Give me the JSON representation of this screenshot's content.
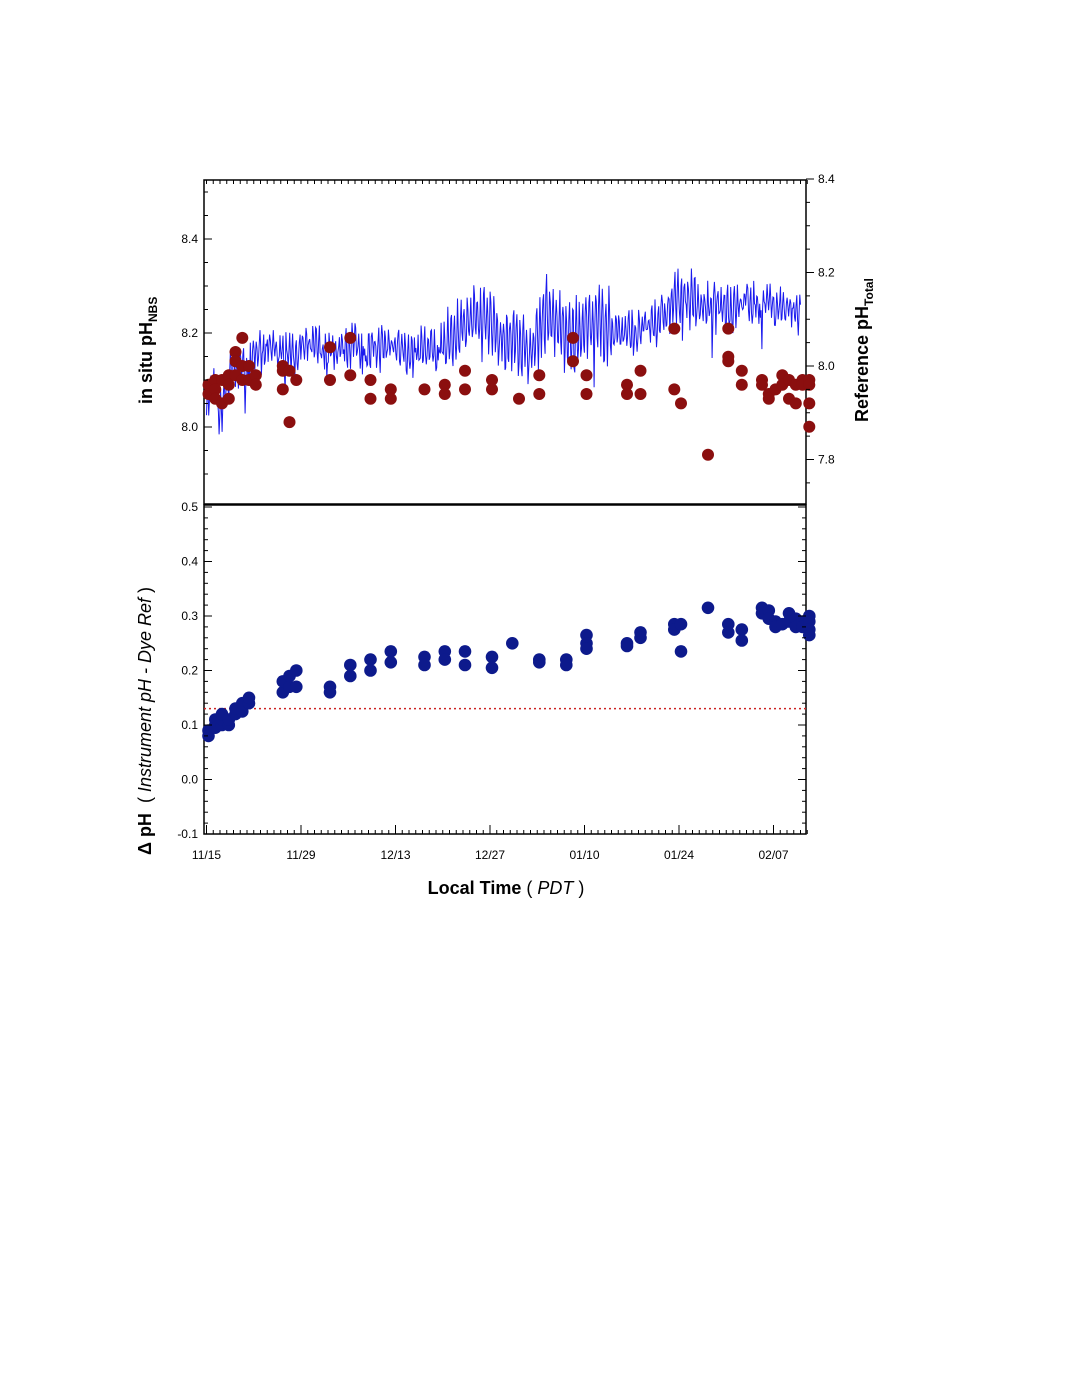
{
  "chart_data": [
    {
      "type": "line",
      "panel": "top",
      "x_ticks": [
        "11/15",
        "11/29",
        "12/13",
        "12/27",
        "01/10",
        "01/24",
        "02/07"
      ],
      "x_range": [
        "2011-11-15",
        "2012-02-12"
      ],
      "ylabel_left": {
        "main": "in situ pH",
        "sub": "NBS"
      },
      "ylabel_right": {
        "main": "Reference pH",
        "sub": "Total"
      },
      "ylim_left": [
        7.85,
        8.55
      ],
      "ylim_right": [
        7.7,
        8.4
      ],
      "yticks_left": [
        "8.0",
        "8.2",
        "8.4"
      ],
      "yticks_right": [
        "7.8",
        "8.0",
        "8.2",
        "8.4"
      ],
      "grid": false,
      "series": [
        {
          "kind": "line",
          "axis": "left",
          "color": "#1a1aee",
          "anchor_points": [
            [
              "11/15",
              8.05
            ],
            [
              "11/16",
              8.08
            ],
            [
              "11/17",
              8.02
            ],
            [
              "11/18",
              8.09
            ],
            [
              "11/19",
              8.12
            ],
            [
              "11/20",
              8.13
            ],
            [
              "11/21",
              8.12
            ],
            [
              "11/22",
              8.17
            ],
            [
              "11/23",
              8.15
            ],
            [
              "11/24",
              8.16
            ],
            [
              "11/25",
              8.17
            ],
            [
              "11/26",
              8.15
            ],
            [
              "11/27",
              8.16
            ],
            [
              "11/28",
              8.15
            ],
            [
              "11/29",
              8.17
            ],
            [
              "12/01",
              8.17
            ],
            [
              "12/03",
              8.16
            ],
            [
              "12/05",
              8.17
            ],
            [
              "12/07",
              8.18
            ],
            [
              "12/09",
              8.16
            ],
            [
              "12/11",
              8.17
            ],
            [
              "12/13",
              8.18
            ],
            [
              "12/15",
              8.15
            ],
            [
              "12/17",
              8.17
            ],
            [
              "12/19",
              8.16
            ],
            [
              "12/21",
              8.18
            ],
            [
              "12/23",
              8.22
            ],
            [
              "12/25",
              8.23
            ],
            [
              "12/27",
              8.23
            ],
            [
              "12/29",
              8.18
            ],
            [
              "12/31",
              8.19
            ],
            [
              "01/02",
              8.15
            ],
            [
              "01/04",
              8.24
            ],
            [
              "01/06",
              8.22
            ],
            [
              "01/08",
              8.18
            ],
            [
              "01/10",
              8.22
            ],
            [
              "01/12",
              8.22
            ],
            [
              "01/14",
              8.21
            ],
            [
              "01/16",
              8.2
            ],
            [
              "01/18",
              8.2
            ],
            [
              "01/20",
              8.22
            ],
            [
              "01/22",
              8.24
            ],
            [
              "01/24",
              8.28
            ],
            [
              "01/26",
              8.27
            ],
            [
              "01/28",
              8.25
            ],
            [
              "01/30",
              8.26
            ],
            [
              "02/01",
              8.25
            ],
            [
              "02/03",
              8.27
            ],
            [
              "02/05",
              8.26
            ],
            [
              "02/07",
              8.26
            ],
            [
              "02/09",
              8.25
            ],
            [
              "02/11",
              8.24
            ]
          ]
        },
        {
          "kind": "scatter",
          "axis": "right",
          "color": "#8b0f0f",
          "points": [
            [
              "11/15",
              7.96
            ],
            [
              "11/15",
              7.94
            ],
            [
              "11/16",
              7.97
            ],
            [
              "11/16",
              7.95
            ],
            [
              "11/16",
              7.93
            ],
            [
              "11/17",
              7.97
            ],
            [
              "11/17",
              7.92
            ],
            [
              "11/18",
              7.98
            ],
            [
              "11/18",
              7.96
            ],
            [
              "11/18",
              7.93
            ],
            [
              "11/19",
              8.03
            ],
            [
              "11/19",
              8.01
            ],
            [
              "11/19",
              7.98
            ],
            [
              "11/20",
              8.06
            ],
            [
              "11/20",
              8.0
            ],
            [
              "11/20",
              7.97
            ],
            [
              "11/21",
              8.0
            ],
            [
              "11/21",
              7.97
            ],
            [
              "11/22",
              7.98
            ],
            [
              "11/22",
              7.96
            ],
            [
              "11/26",
              8.0
            ],
            [
              "11/26",
              7.99
            ],
            [
              "11/26",
              7.95
            ],
            [
              "11/27",
              7.99
            ],
            [
              "11/27",
              7.88
            ],
            [
              "11/28",
              7.97
            ],
            [
              "12/03",
              8.04
            ],
            [
              "12/03",
              7.97
            ],
            [
              "12/06",
              8.06
            ],
            [
              "12/06",
              7.98
            ],
            [
              "12/09",
              7.97
            ],
            [
              "12/09",
              7.93
            ],
            [
              "12/12",
              7.95
            ],
            [
              "12/12",
              7.93
            ],
            [
              "12/17",
              7.95
            ],
            [
              "12/20",
              7.96
            ],
            [
              "12/20",
              7.94
            ],
            [
              "12/23",
              7.99
            ],
            [
              "12/23",
              7.95
            ],
            [
              "12/27",
              7.97
            ],
            [
              "12/27",
              7.95
            ],
            [
              "12/31",
              7.93
            ],
            [
              "01/03",
              7.98
            ],
            [
              "01/03",
              7.94
            ],
            [
              "01/08",
              8.06
            ],
            [
              "01/08",
              8.01
            ],
            [
              "01/10",
              7.98
            ],
            [
              "01/10",
              7.94
            ],
            [
              "01/16",
              7.96
            ],
            [
              "01/16",
              7.94
            ],
            [
              "01/18",
              7.99
            ],
            [
              "01/18",
              7.94
            ],
            [
              "01/23",
              7.95
            ],
            [
              "01/23",
              8.08
            ],
            [
              "01/24",
              7.92
            ],
            [
              "01/28",
              7.81
            ],
            [
              "01/31",
              8.08
            ],
            [
              "01/31",
              8.02
            ],
            [
              "01/31",
              8.01
            ],
            [
              "02/02",
              7.99
            ],
            [
              "02/02",
              7.96
            ],
            [
              "02/05",
              7.97
            ],
            [
              "02/05",
              7.96
            ],
            [
              "02/06",
              7.94
            ],
            [
              "02/06",
              7.93
            ],
            [
              "02/07",
              7.95
            ],
            [
              "02/08",
              7.98
            ],
            [
              "02/08",
              7.96
            ],
            [
              "02/09",
              7.97
            ],
            [
              "02/09",
              7.93
            ],
            [
              "02/10",
              7.96
            ],
            [
              "02/10",
              7.92
            ],
            [
              "02/11",
              7.97
            ],
            [
              "02/11",
              7.96
            ],
            [
              "02/12",
              7.97
            ],
            [
              "02/12",
              7.96
            ],
            [
              "02/12",
              7.92
            ],
            [
              "02/12",
              7.87
            ]
          ]
        }
      ]
    },
    {
      "type": "scatter",
      "panel": "bottom",
      "xlabel": {
        "main": "Local Time",
        "paren_open": " ( ",
        "italic": "PDT",
        "paren_close": " )"
      },
      "ylabel": {
        "main": "Δ pH",
        "paren_open": "  ( ",
        "italic": "Instrument pH - Dye Ref",
        "paren_close": " )"
      },
      "x_ticks": [
        "11/15",
        "11/29",
        "12/13",
        "12/27",
        "01/10",
        "01/24",
        "02/07"
      ],
      "ylim": [
        -0.1,
        0.5
      ],
      "yticks": [
        "-0.1",
        "0.0",
        "0.1",
        "0.2",
        "0.3",
        "0.4",
        "0.5"
      ],
      "reference_line": {
        "y": 0.13,
        "style": "dotted",
        "color": "#cc2222"
      },
      "grid": false,
      "series": [
        {
          "kind": "scatter",
          "color": "#0d1a8c",
          "points": [
            [
              "11/15",
              0.09
            ],
            [
              "11/15",
              0.08
            ],
            [
              "11/16",
              0.1
            ],
            [
              "11/16",
              0.11
            ],
            [
              "11/16",
              0.095
            ],
            [
              "11/17",
              0.1
            ],
            [
              "11/17",
              0.11
            ],
            [
              "11/17",
              0.12
            ],
            [
              "11/18",
              0.1
            ],
            [
              "11/18",
              0.11
            ],
            [
              "11/19",
              0.12
            ],
            [
              "11/19",
              0.13
            ],
            [
              "11/20",
              0.125
            ],
            [
              "11/20",
              0.14
            ],
            [
              "11/21",
              0.14
            ],
            [
              "11/21",
              0.15
            ],
            [
              "11/26",
              0.16
            ],
            [
              "11/26",
              0.18
            ],
            [
              "11/27",
              0.17
            ],
            [
              "11/27",
              0.19
            ],
            [
              "11/28",
              0.2
            ],
            [
              "11/28",
              0.17
            ],
            [
              "12/03",
              0.17
            ],
            [
              "12/03",
              0.16
            ],
            [
              "12/06",
              0.21
            ],
            [
              "12/06",
              0.19
            ],
            [
              "12/09",
              0.22
            ],
            [
              "12/09",
              0.2
            ],
            [
              "12/12",
              0.235
            ],
            [
              "12/12",
              0.215
            ],
            [
              "12/17",
              0.225
            ],
            [
              "12/17",
              0.21
            ],
            [
              "12/20",
              0.235
            ],
            [
              "12/20",
              0.22
            ],
            [
              "12/23",
              0.235
            ],
            [
              "12/23",
              0.21
            ],
            [
              "12/27",
              0.225
            ],
            [
              "12/27",
              0.205
            ],
            [
              "12/30",
              0.25
            ],
            [
              "01/03",
              0.22
            ],
            [
              "01/03",
              0.215
            ],
            [
              "01/07",
              0.22
            ],
            [
              "01/07",
              0.21
            ],
            [
              "01/10",
              0.265
            ],
            [
              "01/10",
              0.25
            ],
            [
              "01/10",
              0.24
            ],
            [
              "01/16",
              0.25
            ],
            [
              "01/16",
              0.245
            ],
            [
              "01/18",
              0.27
            ],
            [
              "01/18",
              0.26
            ],
            [
              "01/23",
              0.285
            ],
            [
              "01/23",
              0.275
            ],
            [
              "01/24",
              0.285
            ],
            [
              "01/24",
              0.235
            ],
            [
              "01/28",
              0.315
            ],
            [
              "01/31",
              0.285
            ],
            [
              "01/31",
              0.27
            ],
            [
              "02/02",
              0.275
            ],
            [
              "02/02",
              0.255
            ],
            [
              "02/05",
              0.315
            ],
            [
              "02/05",
              0.305
            ],
            [
              "02/06",
              0.31
            ],
            [
              "02/06",
              0.295
            ],
            [
              "02/07",
              0.29
            ],
            [
              "02/07",
              0.28
            ],
            [
              "02/08",
              0.285
            ],
            [
              "02/09",
              0.305
            ],
            [
              "02/09",
              0.29
            ],
            [
              "02/10",
              0.295
            ],
            [
              "02/10",
              0.28
            ],
            [
              "02/11",
              0.29
            ],
            [
              "02/11",
              0.28
            ],
            [
              "02/12",
              0.3
            ],
            [
              "02/12",
              0.29
            ],
            [
              "02/12",
              0.275
            ],
            [
              "02/12",
              0.265
            ]
          ]
        }
      ]
    }
  ]
}
